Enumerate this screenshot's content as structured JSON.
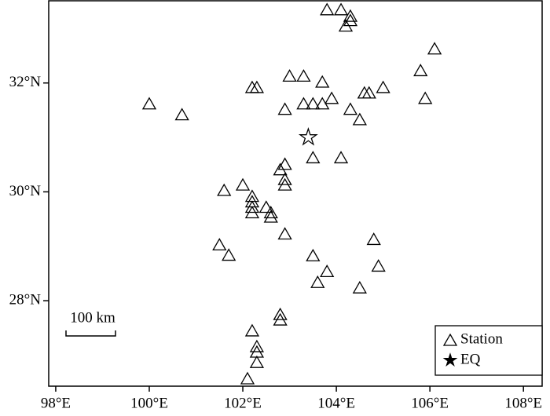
{
  "chart_data": {
    "type": "scatter",
    "xlim": [
      97.85,
      108.4
    ],
    "ylim": [
      26.43,
      33.51
    ],
    "xticks": [
      {
        "value": 98,
        "label": "98°E"
      },
      {
        "value": 100,
        "label": "100°E"
      },
      {
        "value": 102,
        "label": "102°E"
      },
      {
        "value": 104,
        "label": "104°E"
      },
      {
        "value": 106,
        "label": "106°E"
      },
      {
        "value": 108,
        "label": "108°E"
      }
    ],
    "yticks": [
      {
        "value": 28,
        "label": "28°N"
      },
      {
        "value": 30,
        "label": "30°N"
      },
      {
        "value": 32,
        "label": "32°N"
      }
    ],
    "grid": false,
    "legend": "lower right",
    "scale_bar": "100 km",
    "series": [
      {
        "name": "Station",
        "marker": "triangle",
        "color": "#000000",
        "x": [
          103.8,
          104.1,
          104.3,
          104.3,
          104.2,
          106.1,
          105.8,
          105.9,
          100.0,
          100.7,
          102.2,
          102.3,
          103.0,
          103.3,
          103.7,
          102.9,
          103.3,
          103.5,
          103.7,
          103.9,
          104.3,
          104.6,
          104.7,
          105.0,
          104.5,
          103.5,
          104.1,
          102.9,
          102.8,
          102.9,
          102.9,
          102.0,
          101.6,
          102.2,
          102.2,
          102.2,
          102.2,
          102.5,
          102.6,
          102.6,
          102.9,
          101.5,
          101.7,
          103.5,
          103.8,
          103.6,
          104.8,
          104.9,
          104.5,
          102.8,
          102.8,
          102.2,
          102.3,
          102.3,
          102.3,
          102.1
        ],
        "values": [
          33.34,
          33.34,
          33.22,
          33.14,
          33.04,
          32.62,
          32.22,
          31.71,
          31.61,
          31.41,
          31.91,
          31.91,
          32.12,
          32.12,
          32.01,
          31.51,
          31.61,
          31.61,
          31.61,
          31.71,
          31.51,
          31.81,
          31.81,
          31.91,
          31.32,
          30.62,
          30.62,
          30.5,
          30.4,
          30.22,
          30.12,
          30.12,
          30.02,
          29.91,
          29.81,
          29.71,
          29.61,
          29.71,
          29.61,
          29.53,
          29.22,
          29.02,
          28.83,
          28.82,
          28.53,
          28.33,
          29.12,
          28.63,
          28.23,
          27.74,
          27.64,
          27.44,
          27.15,
          27.05,
          26.86,
          26.56
        ]
      },
      {
        "name": "EQ",
        "marker": "star",
        "color": "#000000",
        "x": [
          103.4
        ],
        "values": [
          31.0
        ]
      }
    ]
  }
}
